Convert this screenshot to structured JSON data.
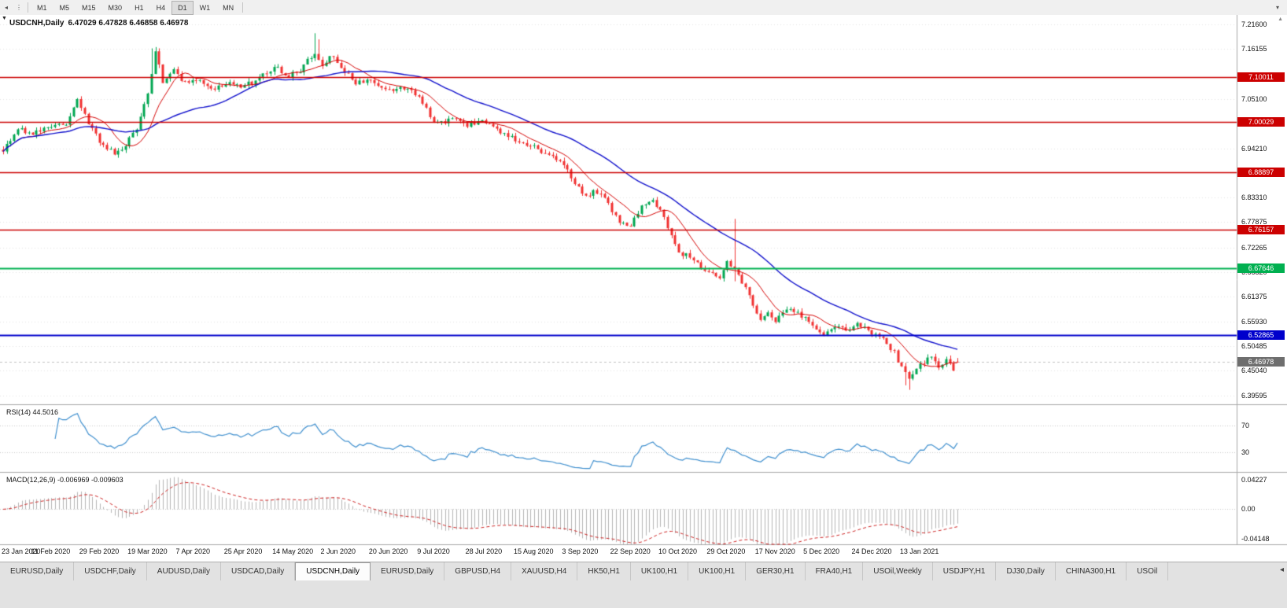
{
  "toolbar": {
    "timeframes": [
      "M1",
      "M5",
      "M15",
      "M30",
      "H1",
      "H4",
      "D1",
      "W1",
      "MN"
    ],
    "active": "D1"
  },
  "chart": {
    "title": "USDCNH,Daily",
    "ohlc": "6.47029 6.47828 6.46858 6.46978",
    "price_axis": [
      "7.21600",
      "7.16155",
      "7.05100",
      "6.94210",
      "6.83310",
      "6.77875",
      "6.72265",
      "6.66820",
      "6.61375",
      "6.55930",
      "6.50485",
      "6.45040",
      "6.39595"
    ],
    "levels": [
      {
        "label": "7.10011",
        "value": 7.10011,
        "color": "#cc0000",
        "width": 1.4
      },
      {
        "label": "7.00029",
        "value": 7.00029,
        "color": "#cc0000",
        "width": 1.4
      },
      {
        "label": "6.88897",
        "value": 6.88897,
        "color": "#cc0000",
        "width": 1.4
      },
      {
        "label": "6.76157",
        "value": 6.76157,
        "color": "#cc0000",
        "width": 1.4
      },
      {
        "label": "6.67646",
        "value": 6.67646,
        "color": "#00b050",
        "width": 1.8
      },
      {
        "label": "6.52865",
        "value": 6.52865,
        "color": "#0000cc",
        "width": 1.8
      }
    ],
    "current_price": {
      "label": "6.46978",
      "value": 6.46978,
      "color": "#6e6e6e"
    },
    "dates": [
      "23 Jan 2020",
      "11 Feb 2020",
      "29 Feb 2020",
      "19 Mar 2020",
      "7 Apr 2020",
      "25 Apr 2020",
      "14 May 2020",
      "2 Jun 2020",
      "20 Jun 2020",
      "9 Jul 2020",
      "28 Jul 2020",
      "15 Aug 2020",
      "3 Sep 2020",
      "22 Sep 2020",
      "10 Oct 2020",
      "29 Oct 2020",
      "17 Nov 2020",
      "5 Dec 2020",
      "24 Dec 2020",
      "13 Jan 2021"
    ]
  },
  "rsi_panel": {
    "label": "RSI(14) 44.5016",
    "levels": [
      "70",
      "30"
    ],
    "line_color": "#3f8fce"
  },
  "macd_panel": {
    "label": "MACD(12,26,9) -0.006969 -0.009603",
    "axis": [
      "0.04227",
      "0.00",
      "-0.04148"
    ]
  },
  "tabs": {
    "items": [
      "EURUSD,Daily",
      "USDCHF,Daily",
      "AUDUSD,Daily",
      "USDCAD,Daily",
      "USDCNH,Daily",
      "EURUSD,Daily",
      "GBPUSD,H4",
      "XAUUSD,H4",
      "HK50,H1",
      "UK100,H1",
      "UK100,H1",
      "GER30,H1",
      "FRA40,H1",
      "USOil,Weekly",
      "USDJPY,H1",
      "DJ30,Daily",
      "CHINA300,H1",
      "USOil"
    ],
    "active_index": 4
  },
  "chart_data": {
    "type": "candlestick",
    "symbol": "USDCNH",
    "timeframe": "Daily",
    "ohlc_current": {
      "open": 6.47029,
      "high": 6.47828,
      "low": 6.46858,
      "close": 6.46978
    },
    "bar_count": 258,
    "price_axis_range": [
      6.376,
      7.237
    ],
    "up_color": "#00a651",
    "down_color": "#f03030",
    "ma_fast": {
      "period": 10,
      "color": "#d40000"
    },
    "ma_slow": {
      "period": 34,
      "color": "#1111cc"
    },
    "rsi": {
      "period": 14,
      "last": 44.5016
    },
    "macd": {
      "fast": 12,
      "slow": 26,
      "signal": 9,
      "last": -0.006969,
      "signal_last": -0.009603,
      "display_range": [
        -0.04148,
        0.04227
      ]
    },
    "date_label_indices": [
      0,
      13,
      26,
      39,
      52,
      65,
      78,
      91,
      104,
      117,
      130,
      143,
      156,
      169,
      182,
      195,
      208,
      221,
      234,
      247
    ],
    "close_anchors": [
      [
        0,
        6.935
      ],
      [
        4,
        6.985
      ],
      [
        8,
        6.975
      ],
      [
        13,
        6.99
      ],
      [
        17,
        7.0
      ],
      [
        20,
        7.045
      ],
      [
        23,
        7.0
      ],
      [
        26,
        6.955
      ],
      [
        30,
        6.932
      ],
      [
        33,
        6.95
      ],
      [
        36,
        6.985
      ],
      [
        39,
        7.06
      ],
      [
        41,
        7.155
      ],
      [
        43,
        7.09
      ],
      [
        46,
        7.115
      ],
      [
        49,
        7.085
      ],
      [
        52,
        7.095
      ],
      [
        56,
        7.075
      ],
      [
        60,
        7.085
      ],
      [
        65,
        7.08
      ],
      [
        69,
        7.095
      ],
      [
        73,
        7.125
      ],
      [
        76,
        7.1
      ],
      [
        80,
        7.115
      ],
      [
        84,
        7.155
      ],
      [
        86,
        7.13
      ],
      [
        88,
        7.145
      ],
      [
        91,
        7.125
      ],
      [
        95,
        7.085
      ],
      [
        99,
        7.095
      ],
      [
        104,
        7.07
      ],
      [
        108,
        7.075
      ],
      [
        112,
        7.06
      ],
      [
        115,
        7.01
      ],
      [
        117,
        6.995
      ],
      [
        121,
        7.005
      ],
      [
        125,
        6.995
      ],
      [
        130,
        7.0
      ],
      [
        134,
        6.975
      ],
      [
        138,
        6.96
      ],
      [
        143,
        6.945
      ],
      [
        147,
        6.93
      ],
      [
        150,
        6.91
      ],
      [
        153,
        6.88
      ],
      [
        156,
        6.84
      ],
      [
        160,
        6.845
      ],
      [
        163,
        6.82
      ],
      [
        166,
        6.78
      ],
      [
        169,
        6.77
      ],
      [
        172,
        6.81
      ],
      [
        175,
        6.825
      ],
      [
        178,
        6.79
      ],
      [
        180,
        6.745
      ],
      [
        182,
        6.715
      ],
      [
        186,
        6.695
      ],
      [
        190,
        6.665
      ],
      [
        193,
        6.655
      ],
      [
        195,
        6.69
      ],
      [
        198,
        6.665
      ],
      [
        200,
        6.63
      ],
      [
        202,
        6.6
      ],
      [
        204,
        6.565
      ],
      [
        206,
        6.58
      ],
      [
        208,
        6.56
      ],
      [
        211,
        6.59
      ],
      [
        214,
        6.575
      ],
      [
        217,
        6.56
      ],
      [
        219,
        6.545
      ],
      [
        221,
        6.53
      ],
      [
        224,
        6.545
      ],
      [
        227,
        6.54
      ],
      [
        230,
        6.55
      ],
      [
        233,
        6.54
      ],
      [
        236,
        6.525
      ],
      [
        238,
        6.51
      ],
      [
        240,
        6.49
      ],
      [
        242,
        6.455
      ],
      [
        244,
        6.432
      ],
      [
        246,
        6.45
      ],
      [
        248,
        6.47
      ],
      [
        250,
        6.478
      ],
      [
        252,
        6.46
      ],
      [
        254,
        6.472
      ],
      [
        256,
        6.455
      ],
      [
        257,
        6.46978
      ]
    ],
    "wick_overrides": [
      {
        "i": 40,
        "h": 7.163
      },
      {
        "i": 41,
        "h": 7.166
      },
      {
        "i": 84,
        "h": 7.1965
      },
      {
        "i": 85,
        "h": 7.183
      },
      {
        "i": 197,
        "h": 6.786,
        "l": 6.648
      },
      {
        "i": 243,
        "l": 6.418
      },
      {
        "i": 244,
        "l": 6.408
      }
    ]
  }
}
